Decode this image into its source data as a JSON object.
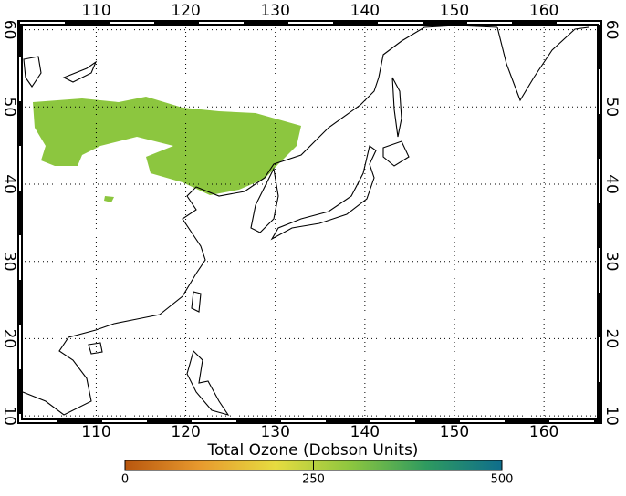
{
  "map": {
    "xlim": [
      101.5,
      166.2
    ],
    "ylim": [
      9.3,
      60.9
    ],
    "xticks": [
      110,
      120,
      130,
      140,
      150,
      160
    ],
    "yticks": [
      10,
      20,
      30,
      40,
      50,
      60
    ],
    "grid": true,
    "colorbar": {
      "label": "Total Ozone (Dobson Units)",
      "lim": [
        0,
        500
      ],
      "ticks": [
        0,
        250,
        500
      ],
      "colors": [
        "#b8560e",
        "#e89a2e",
        "#e6dc40",
        "#8cc63f",
        "#2e9a60",
        "#0f6e8c"
      ]
    }
  }
}
